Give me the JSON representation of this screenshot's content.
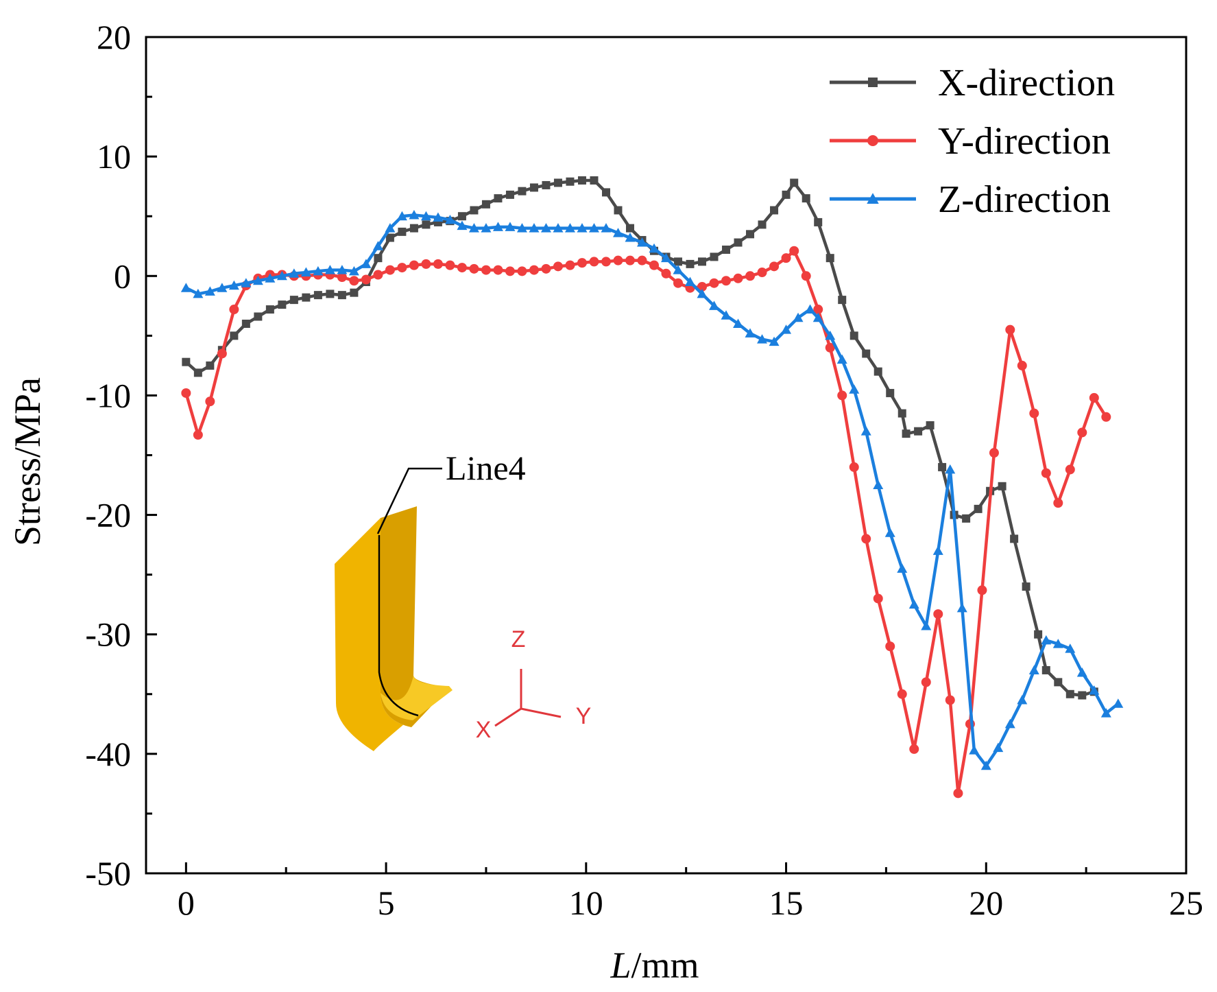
{
  "chart_data": {
    "type": "line",
    "title": "",
    "xlabel_italic": "L",
    "xlabel_unit": "/mm",
    "ylabel": "Stress/MPa",
    "xlim": [
      -1,
      25
    ],
    "ylim": [
      -50,
      20
    ],
    "x_ticks": [
      0,
      5,
      10,
      15,
      20,
      25
    ],
    "x_tick_labels": [
      "0",
      "5",
      "10",
      "15",
      "20",
      "25"
    ],
    "y_ticks": [
      20,
      10,
      0,
      -10,
      -20,
      -30,
      -40,
      -50
    ],
    "y_tick_labels": [
      "20",
      "10",
      "0",
      "-10",
      "-20",
      "-30",
      "-40",
      "-50"
    ],
    "legend_position": "top-right",
    "series": [
      {
        "name": "X-direction",
        "color": "#4a4a4a",
        "marker": "square",
        "points": [
          [
            0,
            -7.2
          ],
          [
            0.3,
            -8.1
          ],
          [
            0.6,
            -7.5
          ],
          [
            0.9,
            -6.2
          ],
          [
            1.2,
            -5
          ],
          [
            1.5,
            -4
          ],
          [
            1.8,
            -3.4
          ],
          [
            2.1,
            -2.8
          ],
          [
            2.4,
            -2.4
          ],
          [
            2.7,
            -2
          ],
          [
            3,
            -1.8
          ],
          [
            3.3,
            -1.6
          ],
          [
            3.6,
            -1.5
          ],
          [
            3.9,
            -1.6
          ],
          [
            4.2,
            -1.4
          ],
          [
            4.5,
            -0.5
          ],
          [
            4.8,
            1.5
          ],
          [
            5.1,
            3.2
          ],
          [
            5.4,
            3.7
          ],
          [
            5.7,
            4
          ],
          [
            6,
            4.3
          ],
          [
            6.3,
            4.5
          ],
          [
            6.6,
            4.6
          ],
          [
            6.9,
            5
          ],
          [
            7.2,
            5.5
          ],
          [
            7.5,
            6
          ],
          [
            7.8,
            6.5
          ],
          [
            8.1,
            6.8
          ],
          [
            8.4,
            7.1
          ],
          [
            8.7,
            7.4
          ],
          [
            9,
            7.6
          ],
          [
            9.3,
            7.8
          ],
          [
            9.6,
            7.9
          ],
          [
            9.9,
            8
          ],
          [
            10.2,
            8
          ],
          [
            10.5,
            7
          ],
          [
            10.8,
            5.5
          ],
          [
            11.1,
            4
          ],
          [
            11.4,
            3
          ],
          [
            11.7,
            2.1
          ],
          [
            12,
            1.6
          ],
          [
            12.3,
            1.2
          ],
          [
            12.6,
            1
          ],
          [
            12.9,
            1.2
          ],
          [
            13.2,
            1.6
          ],
          [
            13.5,
            2.2
          ],
          [
            13.8,
            2.8
          ],
          [
            14.1,
            3.5
          ],
          [
            14.4,
            4.3
          ],
          [
            14.7,
            5.5
          ],
          [
            15,
            6.8
          ],
          [
            15.2,
            7.8
          ],
          [
            15.5,
            6.5
          ],
          [
            15.8,
            4.5
          ],
          [
            16.1,
            1.5
          ],
          [
            16.4,
            -2
          ],
          [
            16.7,
            -5
          ],
          [
            17,
            -6.5
          ],
          [
            17.3,
            -8
          ],
          [
            17.6,
            -9.8
          ],
          [
            17.9,
            -11.5
          ],
          [
            18,
            -13.2
          ],
          [
            18.3,
            -13
          ],
          [
            18.6,
            -12.5
          ],
          [
            18.9,
            -16
          ],
          [
            19.2,
            -20
          ],
          [
            19.5,
            -20.3
          ],
          [
            19.8,
            -19.5
          ],
          [
            20.1,
            -18
          ],
          [
            20.4,
            -17.6
          ],
          [
            20.7,
            -22
          ],
          [
            21,
            -26
          ],
          [
            21.3,
            -30
          ],
          [
            21.5,
            -33
          ],
          [
            21.8,
            -34
          ],
          [
            22.1,
            -35
          ],
          [
            22.4,
            -35.1
          ],
          [
            22.7,
            -34.8
          ]
        ]
      },
      {
        "name": "Y-direction",
        "color": "#ef3e3e",
        "marker": "circle",
        "points": [
          [
            0,
            -9.8
          ],
          [
            0.3,
            -13.3
          ],
          [
            0.6,
            -10.5
          ],
          [
            0.9,
            -6.5
          ],
          [
            1.2,
            -2.8
          ],
          [
            1.5,
            -0.8
          ],
          [
            1.8,
            -0.2
          ],
          [
            2.1,
            0.1
          ],
          [
            2.4,
            0.1
          ],
          [
            2.7,
            0
          ],
          [
            3,
            0
          ],
          [
            3.3,
            0.1
          ],
          [
            3.6,
            0.1
          ],
          [
            3.9,
            -0.1
          ],
          [
            4.2,
            -0.4
          ],
          [
            4.5,
            -0.3
          ],
          [
            4.8,
            0.1
          ],
          [
            5.1,
            0.5
          ],
          [
            5.4,
            0.7
          ],
          [
            5.7,
            0.9
          ],
          [
            6,
            1
          ],
          [
            6.3,
            1
          ],
          [
            6.6,
            0.9
          ],
          [
            6.9,
            0.7
          ],
          [
            7.2,
            0.6
          ],
          [
            7.5,
            0.5
          ],
          [
            7.8,
            0.5
          ],
          [
            8.1,
            0.4
          ],
          [
            8.4,
            0.4
          ],
          [
            8.7,
            0.5
          ],
          [
            9,
            0.6
          ],
          [
            9.3,
            0.8
          ],
          [
            9.6,
            0.9
          ],
          [
            9.9,
            1.1
          ],
          [
            10.2,
            1.2
          ],
          [
            10.5,
            1.2
          ],
          [
            10.8,
            1.3
          ],
          [
            11.1,
            1.3
          ],
          [
            11.4,
            1.3
          ],
          [
            11.7,
            0.9
          ],
          [
            12,
            0.2
          ],
          [
            12.3,
            -0.6
          ],
          [
            12.6,
            -1
          ],
          [
            12.9,
            -0.9
          ],
          [
            13.2,
            -0.6
          ],
          [
            13.5,
            -0.4
          ],
          [
            13.8,
            -0.2
          ],
          [
            14.1,
            0
          ],
          [
            14.4,
            0.3
          ],
          [
            14.7,
            0.8
          ],
          [
            15,
            1.5
          ],
          [
            15.2,
            2.1
          ],
          [
            15.5,
            0
          ],
          [
            15.8,
            -2.8
          ],
          [
            16.1,
            -6
          ],
          [
            16.4,
            -10
          ],
          [
            16.7,
            -16
          ],
          [
            17,
            -22
          ],
          [
            17.3,
            -27
          ],
          [
            17.6,
            -31
          ],
          [
            17.9,
            -35
          ],
          [
            18.2,
            -39.6
          ],
          [
            18.5,
            -34
          ],
          [
            18.8,
            -28.3
          ],
          [
            19.1,
            -35.5
          ],
          [
            19.3,
            -43.3
          ],
          [
            19.6,
            -37.5
          ],
          [
            19.9,
            -26.3
          ],
          [
            20.2,
            -14.8
          ],
          [
            20.6,
            -4.5
          ],
          [
            20.9,
            -7.5
          ],
          [
            21.2,
            -11.5
          ],
          [
            21.5,
            -16.5
          ],
          [
            21.8,
            -19
          ],
          [
            22.1,
            -16.2
          ],
          [
            22.4,
            -13.1
          ],
          [
            22.7,
            -10.2
          ],
          [
            23,
            -11.8
          ]
        ]
      },
      {
        "name": "Z-direction",
        "color": "#1b7fde",
        "marker": "triangle",
        "points": [
          [
            0,
            -1
          ],
          [
            0.3,
            -1.5
          ],
          [
            0.6,
            -1.3
          ],
          [
            0.9,
            -1
          ],
          [
            1.2,
            -0.8
          ],
          [
            1.5,
            -0.6
          ],
          [
            1.8,
            -0.4
          ],
          [
            2.1,
            -0.2
          ],
          [
            2.4,
            0
          ],
          [
            2.7,
            0.2
          ],
          [
            3,
            0.3
          ],
          [
            3.3,
            0.4
          ],
          [
            3.6,
            0.5
          ],
          [
            3.9,
            0.5
          ],
          [
            4.2,
            0.4
          ],
          [
            4.5,
            1
          ],
          [
            4.8,
            2.5
          ],
          [
            5.1,
            4
          ],
          [
            5.4,
            5
          ],
          [
            5.7,
            5.1
          ],
          [
            6,
            5
          ],
          [
            6.3,
            4.9
          ],
          [
            6.6,
            4.7
          ],
          [
            6.9,
            4.2
          ],
          [
            7.2,
            4
          ],
          [
            7.5,
            4
          ],
          [
            7.8,
            4.1
          ],
          [
            8.1,
            4.1
          ],
          [
            8.4,
            4
          ],
          [
            8.7,
            4
          ],
          [
            9,
            4
          ],
          [
            9.3,
            4
          ],
          [
            9.6,
            4
          ],
          [
            9.9,
            4
          ],
          [
            10.2,
            4
          ],
          [
            10.5,
            4
          ],
          [
            10.8,
            3.6
          ],
          [
            11.1,
            3.2
          ],
          [
            11.4,
            2.8
          ],
          [
            11.7,
            2.3
          ],
          [
            12,
            1.5
          ],
          [
            12.3,
            0.5
          ],
          [
            12.6,
            -0.5
          ],
          [
            12.9,
            -1.5
          ],
          [
            13.2,
            -2.5
          ],
          [
            13.5,
            -3.3
          ],
          [
            13.8,
            -4
          ],
          [
            14.1,
            -4.8
          ],
          [
            14.4,
            -5.3
          ],
          [
            14.7,
            -5.5
          ],
          [
            15,
            -4.5
          ],
          [
            15.3,
            -3.5
          ],
          [
            15.6,
            -2.8
          ],
          [
            15.8,
            -3.5
          ],
          [
            16.1,
            -5
          ],
          [
            16.4,
            -7
          ],
          [
            16.7,
            -9.5
          ],
          [
            17,
            -13
          ],
          [
            17.3,
            -17.5
          ],
          [
            17.6,
            -21.5
          ],
          [
            17.9,
            -24.5
          ],
          [
            18.2,
            -27.5
          ],
          [
            18.5,
            -29.3
          ],
          [
            18.8,
            -23
          ],
          [
            19.1,
            -16.2
          ],
          [
            19.4,
            -27.8
          ],
          [
            19.7,
            -39.7
          ],
          [
            20,
            -41
          ],
          [
            20.3,
            -39.5
          ],
          [
            20.6,
            -37.5
          ],
          [
            20.9,
            -35.5
          ],
          [
            21.2,
            -33
          ],
          [
            21.5,
            -30.5
          ],
          [
            21.8,
            -30.8
          ],
          [
            22.1,
            -31.2
          ],
          [
            22.4,
            -33.2
          ],
          [
            22.7,
            -34.7
          ],
          [
            23,
            -36.6
          ],
          [
            23.3,
            -35.8
          ]
        ]
      }
    ],
    "inset": {
      "part_color": "#f0b400",
      "line_label": "Line4",
      "axis_labels": {
        "z": "Z",
        "y": "Y",
        "x": "X"
      }
    }
  }
}
